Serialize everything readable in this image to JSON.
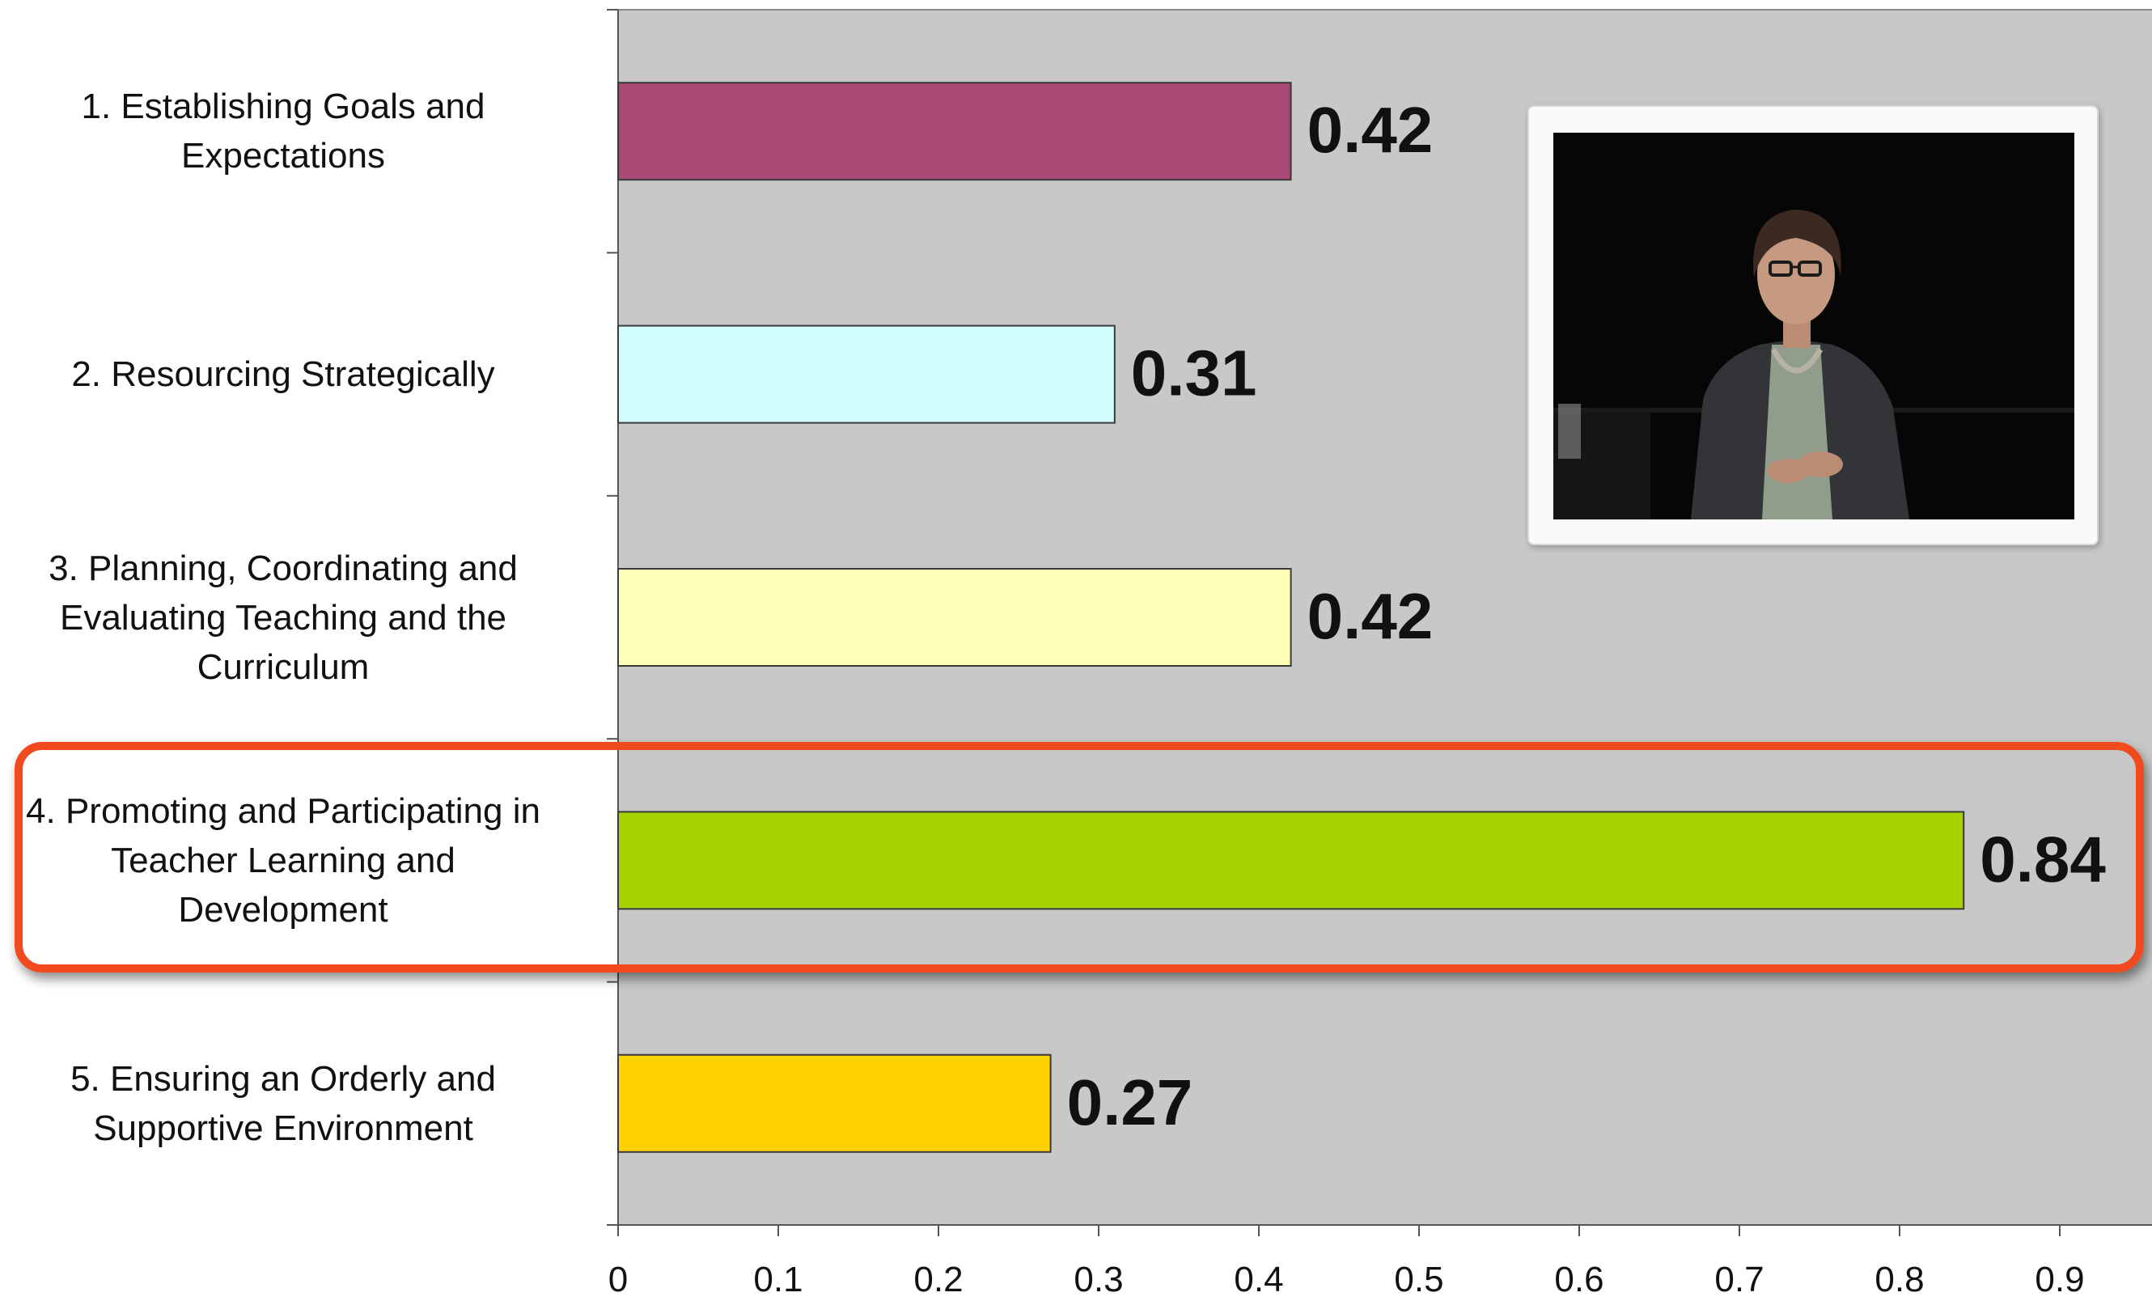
{
  "chart_data": {
    "type": "bar",
    "orientation": "horizontal",
    "categories": [
      "1. Establishing Goals and\nExpectations",
      "2. Resourcing Strategically",
      "3. Planning, Coordinating and\nEvaluating Teaching and the\nCurriculum",
      "4. Promoting and Participating in\nTeacher Learning and\nDevelopment",
      "5. Ensuring an Orderly and\nSupportive Environment"
    ],
    "values": [
      0.42,
      0.31,
      0.42,
      0.84,
      0.27
    ],
    "value_labels": [
      "0.42",
      "0.31",
      "0.42",
      "0.84",
      "0.27"
    ],
    "bar_colors": [
      "#a84874",
      "#d2fdff",
      "#ffffb8",
      "#a7d300",
      "#ffd200"
    ],
    "xlim": [
      0,
      0.9
    ],
    "xticks": [
      "0",
      "0.1",
      "0.2",
      "0.3",
      "0.4",
      "0.5",
      "0.6",
      "0.7",
      "0.8",
      "0.9"
    ],
    "title": "",
    "xlabel": "",
    "ylabel": "",
    "highlighted_category_index": 3,
    "highlight_color": "#f04a1e",
    "plot_background": "#c8c8c8",
    "grid": false
  },
  "inset": {
    "icon": "presenter-video-thumbnail"
  }
}
